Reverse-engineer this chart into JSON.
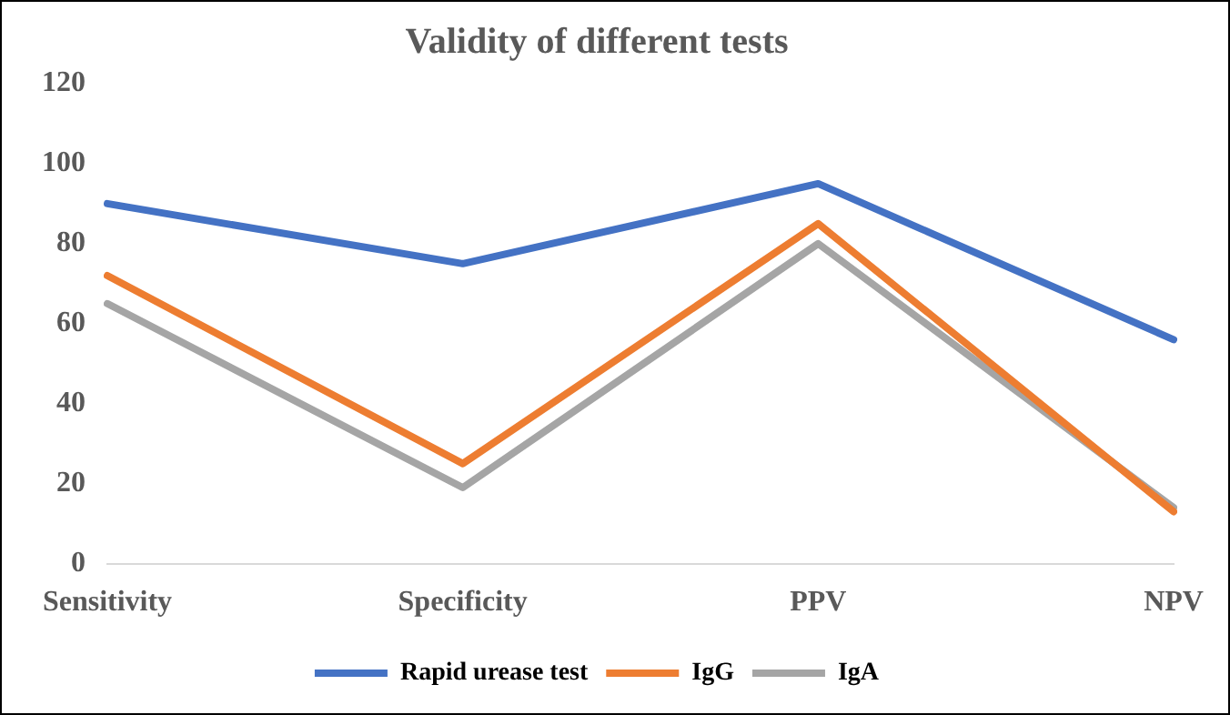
{
  "chart_data": {
    "type": "line",
    "title": "Validity of different tests",
    "categories": [
      "Sensitivity",
      "Specificity",
      "PPV",
      "NPV"
    ],
    "series": [
      {
        "name": "Rapid urease test",
        "color": "#4472c4",
        "values": [
          90,
          75,
          95,
          56
        ]
      },
      {
        "name": "IgG",
        "color": "#ed7d31",
        "values": [
          72,
          25,
          85,
          13
        ]
      },
      {
        "name": "IgA",
        "color": "#a5a5a5",
        "values": [
          65,
          19,
          80,
          14
        ]
      }
    ],
    "ylim": [
      0,
      120
    ],
    "yticks": [
      0,
      20,
      40,
      60,
      80,
      100,
      120
    ],
    "grid": false,
    "legend": "bottom",
    "marker": "none",
    "line_style": "solid"
  }
}
